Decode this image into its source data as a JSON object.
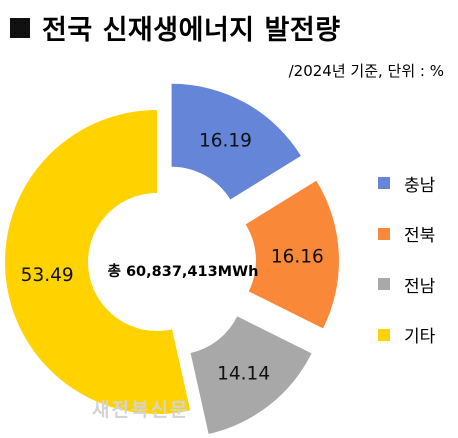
{
  "header": {
    "title": "전국 신재생에너지 발전량",
    "subtitle": "/2024년 기준, 단위 : %"
  },
  "center_label": "총 60,837,413MWh",
  "watermark": "새전북신문",
  "chart_data": {
    "type": "pie",
    "variant": "donut",
    "categories": [
      "충남",
      "전북",
      "전남",
      "기타"
    ],
    "values": [
      16.19,
      16.16,
      14.14,
      53.49
    ],
    "value_labels": [
      "16.19",
      "16.16",
      "14.14",
      "53.49"
    ],
    "colors": [
      "#6585d8",
      "#f98839",
      "#a8a8a8",
      "#ffd200"
    ],
    "legend_position": "right",
    "exploded": [
      true,
      true,
      true,
      false
    ]
  }
}
